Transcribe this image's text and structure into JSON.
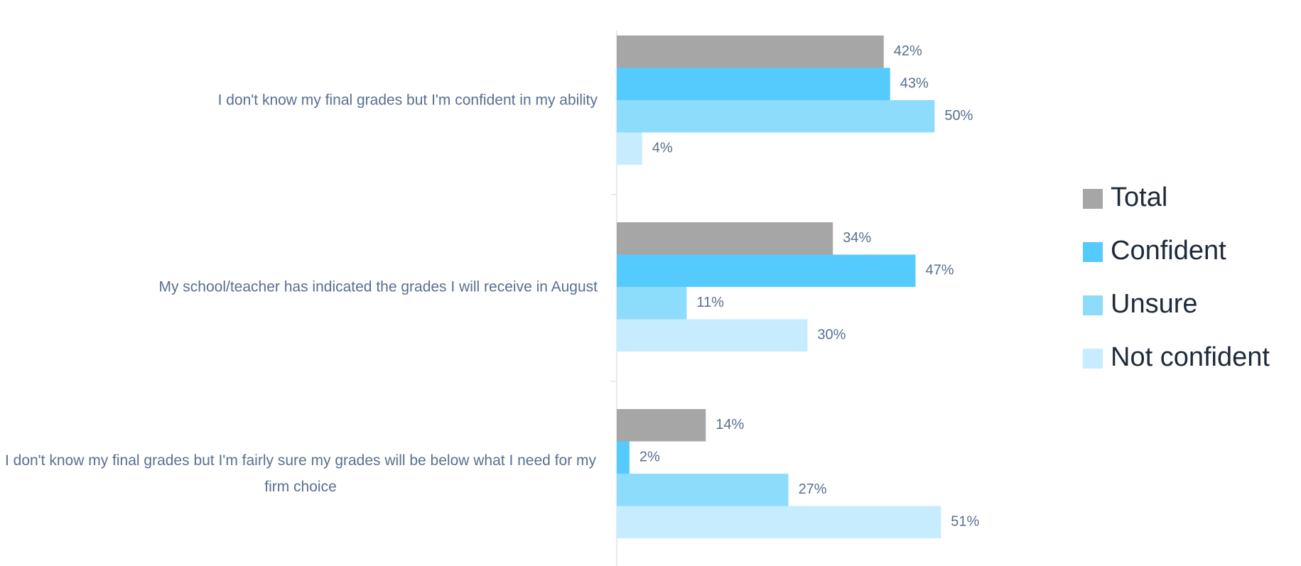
{
  "chart_data": {
    "type": "hbar",
    "categories": [
      "I don't know my final grades but I'm confident in my ability",
      "My school/teacher has indicated the grades I will receive in August",
      "I don't know my final grades but I'm fairly sure my grades will be below what I need for my firm choice"
    ],
    "series": [
      {
        "name": "Total",
        "color": "#a6a6a6",
        "values": [
          42,
          34,
          14
        ],
        "value_labels": [
          "42%",
          "34%",
          "14%"
        ]
      },
      {
        "name": "Confident",
        "color": "#55cbfd",
        "values": [
          43,
          47,
          2
        ],
        "value_labels": [
          "43%",
          "47%",
          "2%"
        ]
      },
      {
        "name": "Unsure",
        "color": "#8ddcfc",
        "values": [
          50,
          11,
          27
        ],
        "value_labels": [
          "50%",
          "11%",
          "27%"
        ]
      },
      {
        "name": "Not confident",
        "color": "#c6ecfd",
        "values": [
          4,
          30,
          51
        ],
        "value_labels": [
          "4%",
          "30%",
          "51%"
        ]
      }
    ],
    "legend": "right"
  }
}
